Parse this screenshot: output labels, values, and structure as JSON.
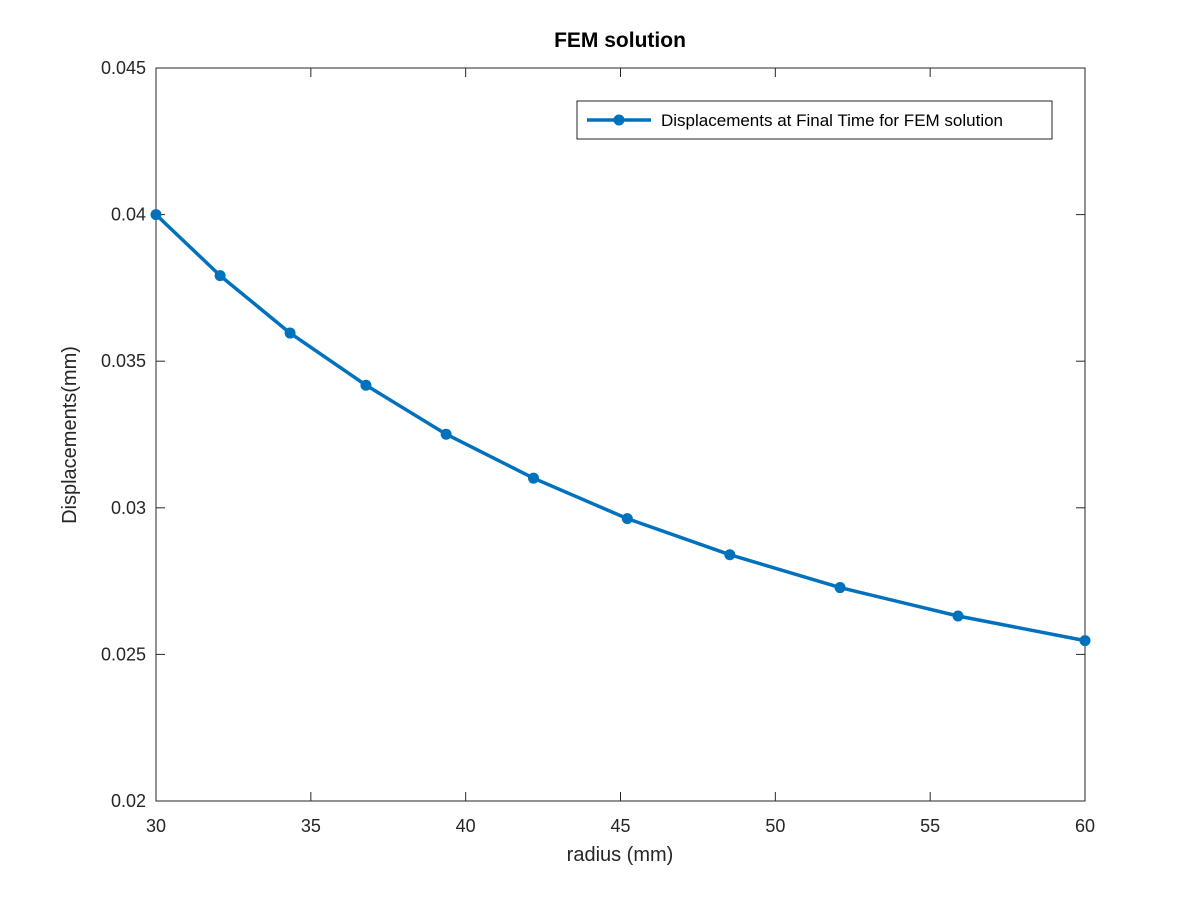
{
  "chart_data": {
    "type": "line",
    "title": "FEM solution",
    "xlabel": "radius (mm)",
    "ylabel": "Displacements(mm)",
    "xlim": [
      30,
      60
    ],
    "ylim": [
      0.02,
      0.045
    ],
    "xticks": [
      30,
      35,
      40,
      45,
      50,
      55,
      60
    ],
    "xtick_labels": [
      "30",
      "35",
      "40",
      "45",
      "50",
      "55",
      "60"
    ],
    "yticks": [
      0.02,
      0.025,
      0.03,
      0.035,
      0.04,
      0.045
    ],
    "ytick_labels": [
      "0.02",
      "0.025",
      "0.03",
      "0.035",
      "0.04",
      "0.045"
    ],
    "grid": false,
    "legend_position": "top-right",
    "series": [
      {
        "name": "Displacements at Final Time for FEM solution",
        "color": "#0072bd",
        "marker": "circle",
        "x": [
          30.0,
          32.07,
          34.33,
          36.78,
          39.37,
          42.19,
          45.22,
          48.53,
          52.09,
          55.9,
          60.0
        ],
        "y": [
          0.04,
          0.03792,
          0.03596,
          0.03418,
          0.03251,
          0.03101,
          0.02963,
          0.0284,
          0.02728,
          0.02631,
          0.02547
        ]
      }
    ]
  }
}
